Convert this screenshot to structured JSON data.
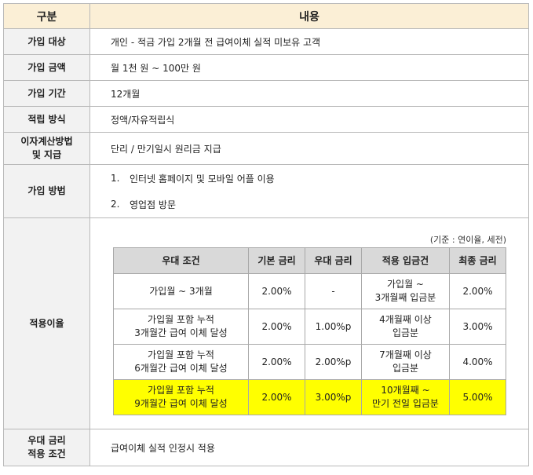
{
  "header": {
    "col1": "구분",
    "col2": "내용"
  },
  "rows": {
    "target": {
      "label": "가입 대상",
      "value": "개인 - 적금 가입 2개월 전 급여이체 실적 미보유 고객"
    },
    "amount": {
      "label": "가입 금액",
      "value": "월 1천 원 ~ 100만 원"
    },
    "period": {
      "label": "가입 기간",
      "value": "12개월"
    },
    "method_type": {
      "label": "적립 방식",
      "value": "정액/자유적립식"
    },
    "interest": {
      "label_line1": "이자계산방법",
      "label_line2": "및 지급",
      "value": "단리 / 만기일시 원리금 지급"
    },
    "join_method": {
      "label": "가입 방법",
      "items": [
        {
          "num": "1.",
          "text": "인터넷 홈페이지 및 모바일 어플 이용"
        },
        {
          "num": "2.",
          "text": "영업점 방문"
        }
      ]
    },
    "rate": {
      "label": "적용이율",
      "note": "(기준 : 연이율, 세전)"
    },
    "pref": {
      "label_line1": "우대 금리",
      "label_line2": "적용 조건",
      "value": "급여이체 실적 인정시 적용"
    }
  },
  "rate_table": {
    "headers": [
      "우대 조건",
      "기본 금리",
      "우대 금리",
      "적용 입금건",
      "최종 금리"
    ],
    "rows": [
      {
        "cond1": "가입월 ~ 3개월",
        "cond2": "",
        "base": "2.00%",
        "pref": "-",
        "dep1": "가입월 ~",
        "dep2": "3개월째 입금분",
        "final": "2.00%"
      },
      {
        "cond1": "가입월 포함 누적",
        "cond2": "3개월간 급여 이체 달성",
        "base": "2.00%",
        "pref": "1.00%p",
        "dep1": "4개월째 이상",
        "dep2": "입금분",
        "final": "3.00%"
      },
      {
        "cond1": "가입월 포함 누적",
        "cond2": "6개월간 급여 이체 달성",
        "base": "2.00%",
        "pref": "2.00%p",
        "dep1": "7개월째 이상",
        "dep2": "입금분",
        "final": "4.00%"
      },
      {
        "cond1": "가입월 포함 누적",
        "cond2": "9개월간 급여 이체 달성",
        "base": "2.00%",
        "pref": "3.00%p",
        "dep1": "10개월째 ~",
        "dep2": "만기 전일 입금분",
        "final": "5.00%"
      }
    ]
  },
  "colors": {
    "header_bg": "#fbefd6",
    "label_bg": "#f2f2f2",
    "inner_header_bg": "#d9d9d9",
    "highlight": "#ffff00"
  }
}
